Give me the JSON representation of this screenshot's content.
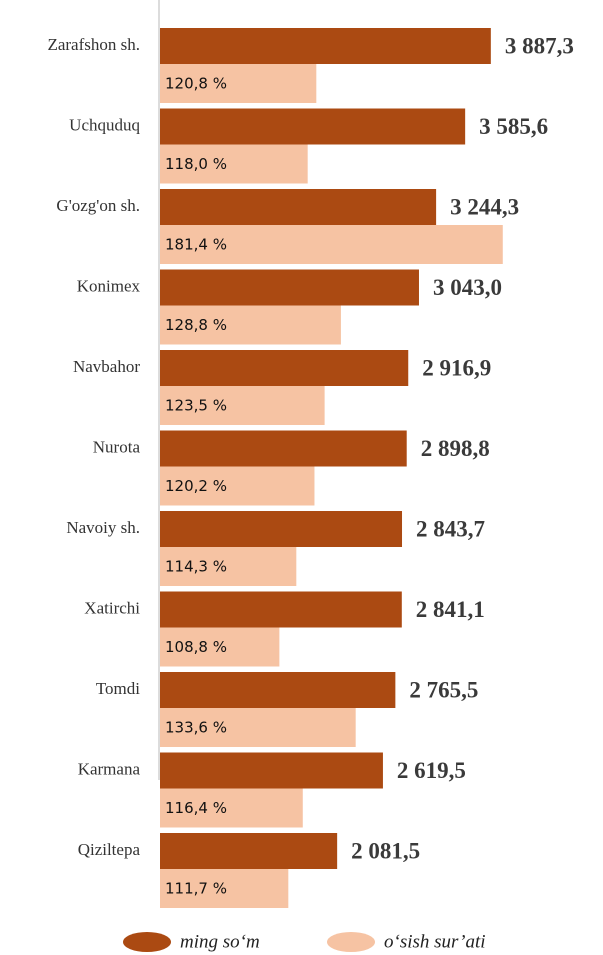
{
  "chart_data": {
    "type": "bar",
    "orientation": "horizontal",
    "categories": [
      "Zarafshon sh.",
      "Uchquduq",
      "G'ozg'on sh.",
      "Konimex",
      "Navbahor",
      "Nurota",
      "Navoiy sh.",
      "Xatirchi",
      "Tomdi",
      "Karmana",
      "Qiziltepa"
    ],
    "series": [
      {
        "name": "ming so‘m",
        "color": "#ab4a12",
        "values": [
          3887.3,
          3585.6,
          3244.3,
          3043.0,
          2916.9,
          2898.8,
          2843.7,
          2841.1,
          2765.5,
          2619.5,
          2081.5
        ],
        "value_labels": [
          "3 887,3",
          "3 585,6",
          "3 244,3",
          "3 043,0",
          "2 916,9",
          "2 898,8",
          "2 843,7",
          "2 841,1",
          "2 765,5",
          "2 619,5",
          "2 081,5"
        ]
      },
      {
        "name": "o‘sish sur’ati",
        "color": "#f6c3a3",
        "axis": "x2",
        "values": [
          120.8,
          118.0,
          181.4,
          128.8,
          123.5,
          120.2,
          114.3,
          108.8,
          133.6,
          116.4,
          111.7
        ],
        "value_labels": [
          "120,8 %",
          "118,0 %",
          "181,4 %",
          "128,8 %",
          "123,5 %",
          "120,2 %",
          "114,3 %",
          "108,8 %",
          "133,6 %",
          "116,4 %",
          "111,7 %"
        ]
      }
    ],
    "xlim": [
      0,
      4700
    ],
    "x2lim": [
      70,
      200
    ],
    "legend": "bottom"
  }
}
